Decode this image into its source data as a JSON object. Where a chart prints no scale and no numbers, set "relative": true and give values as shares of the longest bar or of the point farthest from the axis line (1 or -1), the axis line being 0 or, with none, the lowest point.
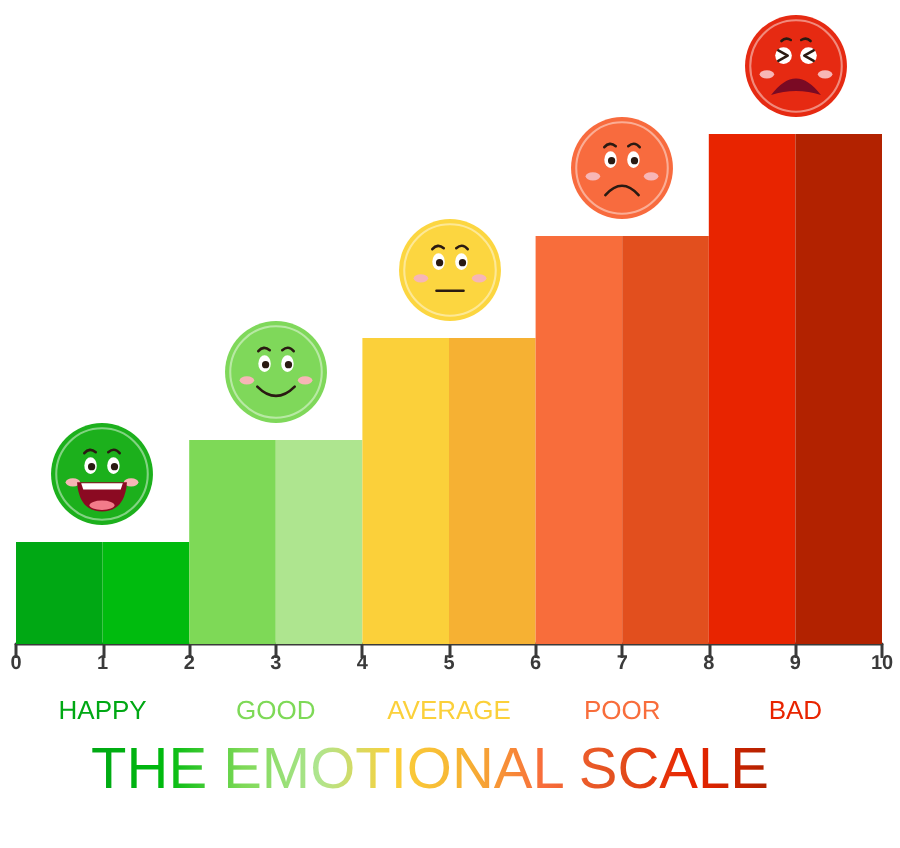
{
  "chart_data": {
    "type": "bar",
    "title": "THE EMOTIONAL SCALE",
    "x": [
      0.5,
      1.5,
      2.5,
      3.5,
      4.5,
      5.5,
      6.5,
      7.5,
      8.5,
      9.5
    ],
    "values": [
      0.2,
      0.2,
      0.4,
      0.4,
      0.6,
      0.6,
      0.8,
      0.8,
      1,
      1
    ],
    "colors": [
      "#00a814",
      "#00bb0e",
      "#7ed957",
      "#aee58f",
      "#fbd03a",
      "#f6b133",
      "#f86d3b",
      "#e24f1e",
      "#e82400",
      "#b22200"
    ],
    "relative": true,
    "xlim": [
      0,
      10
    ],
    "xticks": [
      0,
      1,
      2,
      3,
      4,
      5,
      6,
      7,
      8,
      9,
      10
    ],
    "annotations": [
      "HAPPY",
      "GOOD",
      "AVERAGE",
      "POOR",
      "BAD"
    ]
  }
}
